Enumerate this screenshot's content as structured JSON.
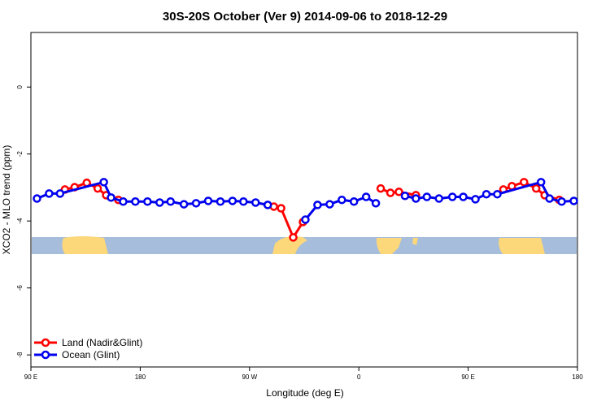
{
  "chart_data": {
    "type": "line",
    "title": "30S-20S October (Ver 9)   2014-09-06 to 2018-12-29",
    "x_label": "Longitude (deg E)",
    "y_label": "XCO2 - MLO trend (ppm)",
    "xlim": [
      90,
      540
    ],
    "ylim": [
      -8.36,
      1.63
    ],
    "xticks": [
      {
        "value": 90,
        "label": "90 E"
      },
      180,
      {
        "value": 270,
        "label": "90 W"
      },
      {
        "value": 360,
        "label": "0"
      },
      {
        "value": 450,
        "label": "90 E"
      },
      {
        "value": 540,
        "label": "180"
      }
    ],
    "yticks": [
      0,
      -2,
      -4,
      -6,
      -8
    ],
    "legend": "bottom-left",
    "series": [
      {
        "name": "Land (Nadir&Glint)",
        "color": "#ff0000",
        "x": [
          118,
          126,
          136,
          145,
          152,
          162,
          null,
          290,
          296,
          306,
          314,
          null,
          378,
          386,
          393,
          407,
          null,
          479,
          486,
          496,
          506,
          513,
          525
        ],
        "values": [
          -3.06,
          -2.99,
          -2.86,
          -3.03,
          -3.23,
          -3.37,
          null,
          -3.57,
          -3.62,
          -4.49,
          -4.03,
          null,
          -3.03,
          -3.16,
          -3.13,
          -3.23,
          null,
          -3.06,
          -2.96,
          -2.84,
          -3.03,
          -3.23,
          -3.37
        ]
      },
      {
        "name": "Ocean (Glint)",
        "color": "#0000ee",
        "x": [
          95,
          105,
          114,
          150,
          156,
          166,
          176,
          186,
          196,
          205,
          216,
          226,
          236,
          246,
          256,
          265,
          275,
          285,
          null,
          316,
          326,
          336,
          346,
          356,
          366,
          374,
          null,
          398,
          407,
          416,
          426,
          437,
          446,
          456,
          465,
          474,
          510,
          517,
          527,
          537
        ],
        "values": [
          -3.33,
          -3.18,
          -3.18,
          -2.84,
          -3.3,
          -3.42,
          -3.42,
          -3.42,
          -3.45,
          -3.42,
          -3.5,
          -3.47,
          -3.4,
          -3.42,
          -3.4,
          -3.42,
          -3.45,
          -3.52,
          null,
          -3.96,
          -3.52,
          -3.5,
          -3.37,
          -3.42,
          -3.28,
          -3.47,
          null,
          -3.25,
          -3.33,
          -3.28,
          -3.33,
          -3.28,
          -3.28,
          -3.35,
          -3.2,
          -3.2,
          -2.84,
          -3.33,
          -3.42,
          -3.4
        ]
      }
    ]
  }
}
